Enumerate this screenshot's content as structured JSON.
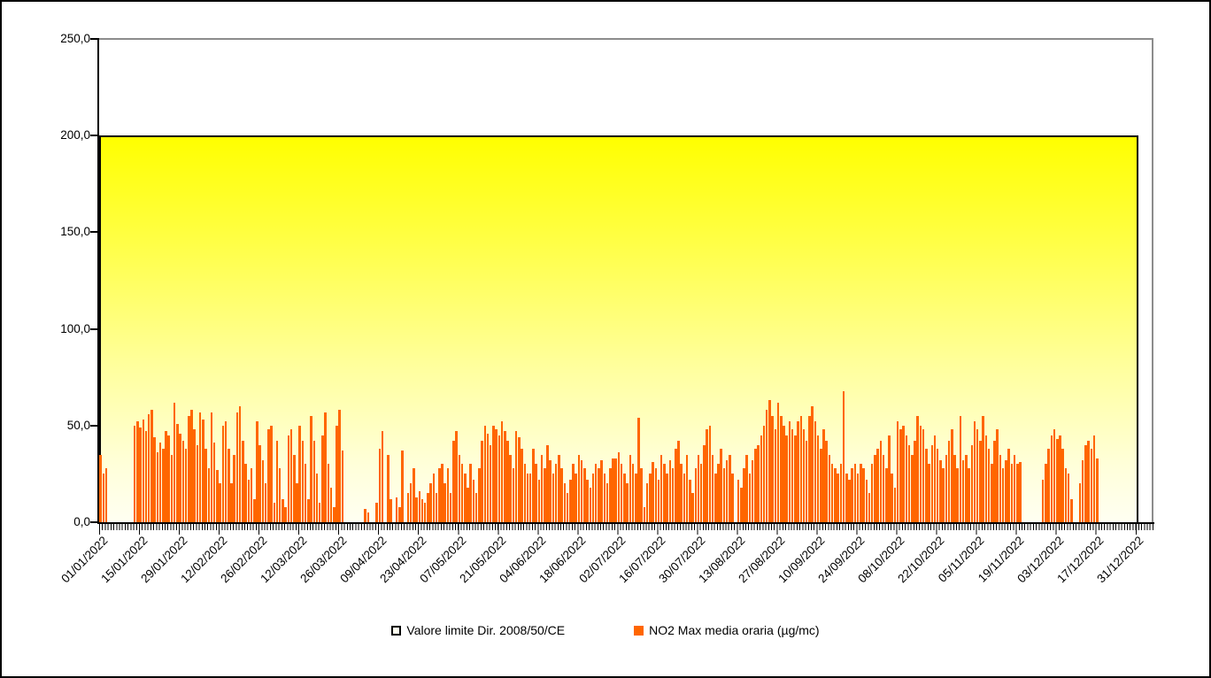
{
  "chart_data": {
    "type": "bar",
    "title": "",
    "legend_position": "bottom",
    "grid": false,
    "x_axis": {
      "start_date": "01/01/2022",
      "end_date": "31/12/2022",
      "days": 365,
      "label_interval_days": 14,
      "tick_labels": [
        "01/01/2022",
        "15/01/2022",
        "29/01/2022",
        "12/02/2022",
        "26/02/2022",
        "12/03/2022",
        "26/03/2022",
        "09/04/2022",
        "23/04/2022",
        "07/05/2022",
        "21/05/2022",
        "04/06/2022",
        "18/06/2022",
        "02/07/2022",
        "16/07/2022",
        "30/07/2022",
        "13/08/2022",
        "27/08/2022",
        "10/09/2022",
        "24/09/2022",
        "08/10/2022",
        "22/10/2022",
        "05/11/2022",
        "19/11/2022",
        "03/12/2022",
        "17/12/2022",
        "31/12/2022"
      ]
    },
    "y_axis": {
      "min": 0,
      "max": 250,
      "tick_step": 50,
      "tick_values": [
        250,
        200,
        150,
        100,
        50,
        0
      ],
      "tick_labels": [
        "250,0",
        "200,0",
        "150,0",
        "100,0",
        "50,0",
        "0,0"
      ]
    },
    "series": [
      {
        "name": "Valore limite Dir. 2008/50/CE",
        "type": "area",
        "value": 200,
        "fill_top": "#FFFF00",
        "fill_bottom": "#FFFFF2",
        "border_color": "#000000"
      },
      {
        "name": "NO2 Max media oraria (µg/mc)",
        "type": "bar",
        "color": "#FF6600",
        "daily_values": [
          35,
          25,
          28,
          null,
          null,
          null,
          null,
          null,
          null,
          null,
          null,
          null,
          50,
          52,
          49,
          53,
          47,
          56,
          58,
          44,
          36,
          41,
          38,
          47,
          45,
          35,
          62,
          51,
          46,
          42,
          38,
          55,
          58,
          48,
          40,
          57,
          53,
          38,
          28,
          57,
          41,
          27,
          20,
          50,
          52,
          38,
          20,
          35,
          57,
          60,
          42,
          30,
          22,
          28,
          12,
          52,
          40,
          32,
          20,
          48,
          50,
          10,
          42,
          28,
          12,
          8,
          45,
          48,
          35,
          20,
          50,
          42,
          30,
          12,
          55,
          42,
          25,
          10,
          45,
          57,
          30,
          18,
          8,
          50,
          58,
          37,
          null,
          null,
          null,
          null,
          null,
          null,
          null,
          7,
          5,
          null,
          null,
          10,
          38,
          47,
          null,
          35,
          12,
          null,
          13,
          8,
          37,
          null,
          15,
          20,
          28,
          13,
          16,
          12,
          10,
          15,
          20,
          25,
          15,
          28,
          30,
          20,
          28,
          15,
          42,
          47,
          35,
          30,
          25,
          18,
          30,
          22,
          15,
          28,
          42,
          50,
          46,
          40,
          50,
          48,
          45,
          52,
          47,
          42,
          35,
          28,
          47,
          44,
          38,
          30,
          25,
          25,
          38,
          30,
          22,
          35,
          28,
          40,
          32,
          25,
          30,
          35,
          28,
          20,
          15,
          22,
          30,
          25,
          35,
          32,
          28,
          22,
          18,
          25,
          30,
          28,
          32,
          25,
          20,
          28,
          33,
          33,
          36,
          30,
          25,
          20,
          35,
          30,
          25,
          54,
          28,
          8,
          20,
          25,
          31,
          28,
          22,
          35,
          30,
          25,
          32,
          28,
          38,
          42,
          30,
          25,
          35,
          22,
          15,
          28,
          35,
          30,
          40,
          48,
          50,
          35,
          25,
          30,
          38,
          28,
          32,
          35,
          25,
          null,
          22,
          18,
          28,
          35,
          25,
          32,
          38,
          40,
          45,
          50,
          58,
          63,
          55,
          48,
          62,
          55,
          50,
          45,
          52,
          48,
          45,
          52,
          55,
          48,
          42,
          55,
          60,
          52,
          45,
          38,
          48,
          42,
          35,
          30,
          28,
          25,
          30,
          68,
          25,
          22,
          28,
          30,
          25,
          30,
          28,
          22,
          15,
          30,
          35,
          38,
          42,
          35,
          28,
          45,
          25,
          18,
          52,
          48,
          50,
          45,
          40,
          35,
          42,
          55,
          50,
          48,
          38,
          30,
          40,
          45,
          38,
          32,
          28,
          35,
          42,
          48,
          35,
          28,
          55,
          32,
          35,
          28,
          40,
          52,
          48,
          42,
          55,
          45,
          38,
          30,
          42,
          48,
          35,
          28,
          32,
          38,
          30,
          35,
          30,
          31,
          null,
          null,
          null,
          null,
          null,
          null,
          null,
          22,
          30,
          38,
          45,
          48,
          43,
          45,
          38,
          28,
          25,
          12,
          null,
          null,
          20,
          32,
          40,
          42,
          38,
          45,
          33,
          null,
          null,
          null,
          null,
          null,
          null,
          null,
          null,
          null,
          null,
          null,
          null,
          null,
          null
        ]
      }
    ]
  },
  "legend": {
    "items": [
      {
        "label": "Valore limite Dir. 2008/50/CE",
        "marker": "outlined-yellow-square"
      },
      {
        "label": "NO2 Max media oraria (µg/mc)",
        "marker": "orange-square"
      }
    ]
  }
}
